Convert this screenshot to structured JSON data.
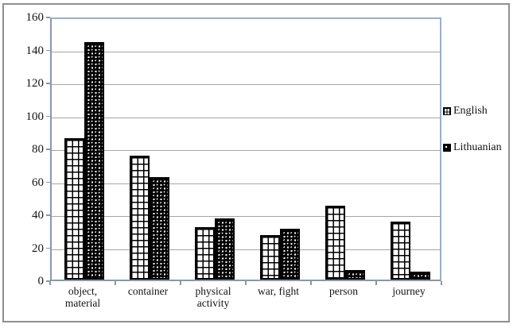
{
  "chart_data": {
    "type": "bar",
    "title": "",
    "categories": [
      "object, material",
      "container",
      "physical activity",
      "war, fight",
      "person",
      "journey"
    ],
    "category_display": [
      "object,\nmaterial",
      "container",
      "physical\nactivity",
      "war, fight",
      "person",
      "journey"
    ],
    "series": [
      {
        "name": "English",
        "pattern": "grid",
        "values": [
          86,
          75,
          32,
          27,
          45,
          35
        ]
      },
      {
        "name": "Lithuanian",
        "pattern": "spheres",
        "values": [
          144,
          62,
          37,
          31,
          6,
          5
        ]
      }
    ],
    "ylim": [
      0,
      160
    ],
    "yticks": [
      0,
      20,
      40,
      60,
      80,
      100,
      120,
      140,
      160
    ],
    "xlabel": "",
    "ylabel": "",
    "grid": true,
    "legend_position": "right",
    "colors": {
      "plot_border": "#95AFD7",
      "gridline": "#A6A6A6",
      "axis_line": "#8A97A8",
      "bar_border": "#000000",
      "frame": "#8f8f8f",
      "text": "#141414"
    }
  }
}
